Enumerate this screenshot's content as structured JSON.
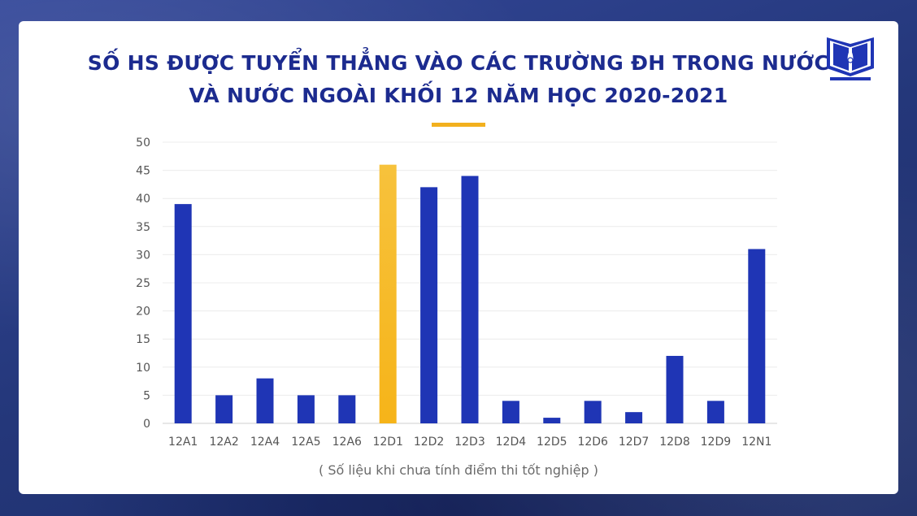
{
  "title_line1": "SỐ HS ĐƯỢC TUYỂN THẲNG VÀO CÁC TRƯỜNG ĐH TRONG NƯỚC",
  "title_line2": "VÀ NƯỚC NGOÀI KHỐI 12 NĂM HỌC 2020-2021",
  "note": "( Số liệu khi chưa tính điểm thi tốt nghiệp )",
  "colors": {
    "bar": "#1f35b5",
    "highlight": "#f6b419",
    "title": "#1c2b8f",
    "accent": "#f2b01e"
  },
  "chart_data": {
    "type": "bar",
    "categories": [
      "12A1",
      "12A2",
      "12A4",
      "12A5",
      "12A6",
      "12D1",
      "12D2",
      "12D3",
      "12D4",
      "12D5",
      "12D6",
      "12D7",
      "12D8",
      "12D9",
      "12N1"
    ],
    "values": [
      39,
      5,
      8,
      5,
      5,
      46,
      42,
      44,
      4,
      1,
      4,
      2,
      12,
      4,
      31
    ],
    "highlight_category": "12D1",
    "ylim": [
      0,
      50
    ],
    "yticks": [
      0,
      5,
      10,
      15,
      20,
      25,
      30,
      35,
      40,
      45,
      50
    ],
    "grid": true,
    "xlabel": "",
    "ylabel": ""
  }
}
